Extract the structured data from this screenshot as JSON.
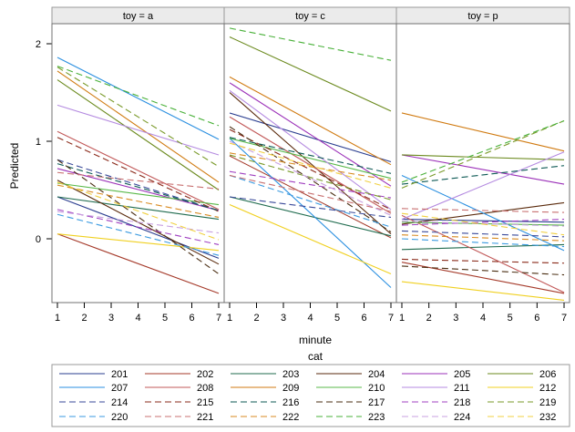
{
  "chart_data": {
    "type": "line",
    "ylabel": "Predicted",
    "xlabel": "minute",
    "x": [
      1,
      7
    ],
    "xticks": [
      1,
      2,
      3,
      4,
      5,
      6,
      7
    ],
    "yticks": [
      0,
      1,
      2
    ],
    "xlim": [
      1,
      7
    ],
    "ylim": [
      -0.8,
      2.2
    ],
    "grid": false,
    "legend_placement": "bottom",
    "legend_title": "cat",
    "panels": [
      {
        "title": "toy = a",
        "series": [
          {
            "name": "201",
            "values": [
              0.43,
              -0.2
            ]
          },
          {
            "name": "202",
            "values": [
              0.05,
              -0.56
            ]
          },
          {
            "name": "203",
            "values": [
              0.43,
              0.2
            ]
          },
          {
            "name": "204",
            "values": [
              0.6,
              -0.26
            ]
          },
          {
            "name": "205",
            "values": [
              0.72,
              0.29
            ]
          },
          {
            "name": "206",
            "values": [
              1.63,
              0.5
            ]
          },
          {
            "name": "207",
            "values": [
              1.86,
              1.02
            ]
          },
          {
            "name": "208",
            "values": [
              1.1,
              0.3
            ]
          },
          {
            "name": "209",
            "values": [
              1.72,
              0.58
            ]
          },
          {
            "name": "210",
            "values": [
              0.57,
              0.35
            ]
          },
          {
            "name": "211",
            "values": [
              1.37,
              0.86
            ]
          },
          {
            "name": "212",
            "values": [
              0.05,
              -0.12
            ]
          },
          {
            "name": "214",
            "values": [
              0.81,
              0.29
            ]
          },
          {
            "name": "215",
            "values": [
              1.04,
              0.28
            ]
          },
          {
            "name": "216",
            "values": [
              0.77,
              0.29
            ]
          },
          {
            "name": "217",
            "values": [
              0.81,
              -0.36
            ]
          },
          {
            "name": "218",
            "values": [
              0.3,
              -0.06
            ]
          },
          {
            "name": "219",
            "values": [
              1.76,
              0.74
            ]
          },
          {
            "name": "220",
            "values": [
              0.25,
              -0.17
            ]
          },
          {
            "name": "221",
            "values": [
              0.68,
              0.51
            ]
          },
          {
            "name": "222",
            "values": [
              0.55,
              0.22
            ]
          },
          {
            "name": "223",
            "values": [
              1.77,
              1.16
            ]
          },
          {
            "name": "224",
            "values": [
              0.28,
              0.06
            ]
          },
          {
            "name": "232",
            "values": [
              0.58,
              -0.01
            ]
          }
        ]
      },
      {
        "title": "toy = c",
        "series": [
          {
            "name": "201",
            "values": [
              1.29,
              0.79
            ]
          },
          {
            "name": "202",
            "values": [
              0.85,
              0.01
            ]
          },
          {
            "name": "203",
            "values": [
              0.43,
              0.03
            ]
          },
          {
            "name": "204",
            "values": [
              1.5,
              0.05
            ]
          },
          {
            "name": "205",
            "values": [
              1.6,
              0.54
            ]
          },
          {
            "name": "206",
            "values": [
              2.07,
              1.31
            ]
          },
          {
            "name": "207",
            "values": [
              1.03,
              -0.5
            ]
          },
          {
            "name": "208",
            "values": [
              1.25,
              0.26
            ]
          },
          {
            "name": "209",
            "values": [
              1.66,
              0.76
            ]
          },
          {
            "name": "210",
            "values": [
              1.03,
              0.62
            ]
          },
          {
            "name": "211",
            "values": [
              1.52,
              0.3
            ]
          },
          {
            "name": "212",
            "values": [
              0.35,
              -0.36
            ]
          },
          {
            "name": "214",
            "values": [
              0.43,
              0.22
            ]
          },
          {
            "name": "215",
            "values": [
              1.12,
              0.3
            ]
          },
          {
            "name": "216",
            "values": [
              1.04,
              0.67
            ]
          },
          {
            "name": "217",
            "values": [
              1.15,
              0.07
            ]
          },
          {
            "name": "218",
            "values": [
              0.69,
              0.42
            ]
          },
          {
            "name": "219",
            "values": [
              0.86,
              0.4
            ]
          },
          {
            "name": "220",
            "values": [
              0.65,
              0.12
            ]
          },
          {
            "name": "221",
            "values": [
              0.65,
              0.28
            ]
          },
          {
            "name": "222",
            "values": [
              0.88,
              0.6
            ]
          },
          {
            "name": "223",
            "values": [
              2.16,
              1.83
            ]
          },
          {
            "name": "224",
            "values": [
              1.0,
              0.24
            ]
          },
          {
            "name": "232",
            "values": [
              0.98,
              0.52
            ]
          }
        ]
      },
      {
        "title": "toy = p",
        "series": [
          {
            "name": "201",
            "values": [
              0.2,
              0.17
            ]
          },
          {
            "name": "202",
            "values": [
              -0.24,
              -0.56
            ]
          },
          {
            "name": "203",
            "values": [
              -0.11,
              -0.06
            ]
          },
          {
            "name": "204",
            "values": [
              0.15,
              0.37
            ]
          },
          {
            "name": "205",
            "values": [
              0.86,
              0.56
            ]
          },
          {
            "name": "206",
            "values": [
              0.86,
              0.81
            ]
          },
          {
            "name": "207",
            "values": [
              0.65,
              -0.12
            ]
          },
          {
            "name": "208",
            "values": [
              0.24,
              -0.55
            ]
          },
          {
            "name": "209",
            "values": [
              1.29,
              0.9
            ]
          },
          {
            "name": "210",
            "values": [
              0.17,
              0.14
            ]
          },
          {
            "name": "211",
            "values": [
              0.2,
              0.89
            ]
          },
          {
            "name": "212",
            "values": [
              -0.44,
              -0.63
            ]
          },
          {
            "name": "214",
            "values": [
              0.08,
              0.02
            ]
          },
          {
            "name": "215",
            "values": [
              -0.21,
              -0.25
            ]
          },
          {
            "name": "216",
            "values": [
              0.56,
              0.75
            ]
          },
          {
            "name": "217",
            "values": [
              -0.28,
              -0.37
            ]
          },
          {
            "name": "218",
            "values": [
              0.14,
              0.2
            ]
          },
          {
            "name": "219",
            "values": [
              0.52,
              1.21
            ]
          },
          {
            "name": "220",
            "values": [
              0.0,
              -0.08
            ]
          },
          {
            "name": "221",
            "values": [
              0.31,
              0.27
            ]
          },
          {
            "name": "222",
            "values": [
              0.04,
              -0.02
            ]
          },
          {
            "name": "223",
            "values": [
              0.58,
              1.21
            ]
          },
          {
            "name": "224",
            "values": [
              0.18,
              0.13
            ]
          },
          {
            "name": "232",
            "values": [
              0.26,
              0.04
            ]
          }
        ]
      }
    ],
    "series_styles": [
      {
        "name": "201",
        "color": "#2a3d8f",
        "dash": false
      },
      {
        "name": "202",
        "color": "#a53a2a",
        "dash": false
      },
      {
        "name": "203",
        "color": "#1f6b4e",
        "dash": false
      },
      {
        "name": "204",
        "color": "#5a2a0c",
        "dash": false
      },
      {
        "name": "205",
        "color": "#9b30b8",
        "dash": false
      },
      {
        "name": "206",
        "color": "#6b8a1e",
        "dash": false
      },
      {
        "name": "207",
        "color": "#2a8fe0",
        "dash": false
      },
      {
        "name": "208",
        "color": "#c25a5a",
        "dash": false
      },
      {
        "name": "209",
        "color": "#d07a10",
        "dash": false
      },
      {
        "name": "210",
        "color": "#58b848",
        "dash": false
      },
      {
        "name": "211",
        "color": "#b48ae0",
        "dash": false
      },
      {
        "name": "212",
        "color": "#f0d020",
        "dash": false
      },
      {
        "name": "214",
        "color": "#3a4a9a",
        "dash": true
      },
      {
        "name": "215",
        "color": "#8a2a1a",
        "dash": true
      },
      {
        "name": "216",
        "color": "#0e5a55",
        "dash": true
      },
      {
        "name": "217",
        "color": "#4a2e12",
        "dash": true
      },
      {
        "name": "218",
        "color": "#a040c0",
        "dash": true
      },
      {
        "name": "219",
        "color": "#7a9a2a",
        "dash": true
      },
      {
        "name": "220",
        "color": "#3a9ae0",
        "dash": true
      },
      {
        "name": "221",
        "color": "#c87070",
        "dash": true
      },
      {
        "name": "222",
        "color": "#d88a20",
        "dash": true
      },
      {
        "name": "223",
        "color": "#48b038",
        "dash": true
      },
      {
        "name": "224",
        "color": "#c8a0e0",
        "dash": true
      },
      {
        "name": "232",
        "color": "#f0d040",
        "dash": true
      }
    ]
  }
}
